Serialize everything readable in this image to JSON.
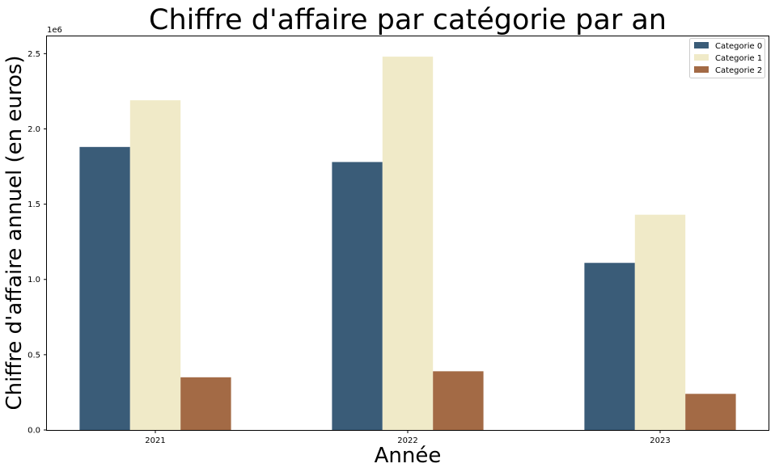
{
  "chart_data": {
    "type": "bar",
    "title": "Chiffre d'affaire par catégorie par an",
    "xlabel": "Année",
    "ylabel": "Chiffre d'affaire annuel (en euros)",
    "y_scale_label": "1e6",
    "categories": [
      "2021",
      "2022",
      "2023"
    ],
    "y_ticks": [
      "0.0",
      "0.5",
      "1.0",
      "1.5",
      "2.0",
      "2.5"
    ],
    "ylim": [
      0,
      2.62
    ],
    "grid": false,
    "legend_position": "top-right",
    "series": [
      {
        "name": "Categorie 0",
        "color": "#3a5c78",
        "values": [
          1.88,
          1.78,
          1.11
        ]
      },
      {
        "name": "Categorie 1",
        "color": "#f0eac8",
        "values": [
          2.19,
          2.48,
          1.43
        ]
      },
      {
        "name": "Categorie 2",
        "color": "#a36a45",
        "values": [
          0.35,
          0.39,
          0.24
        ]
      }
    ]
  }
}
